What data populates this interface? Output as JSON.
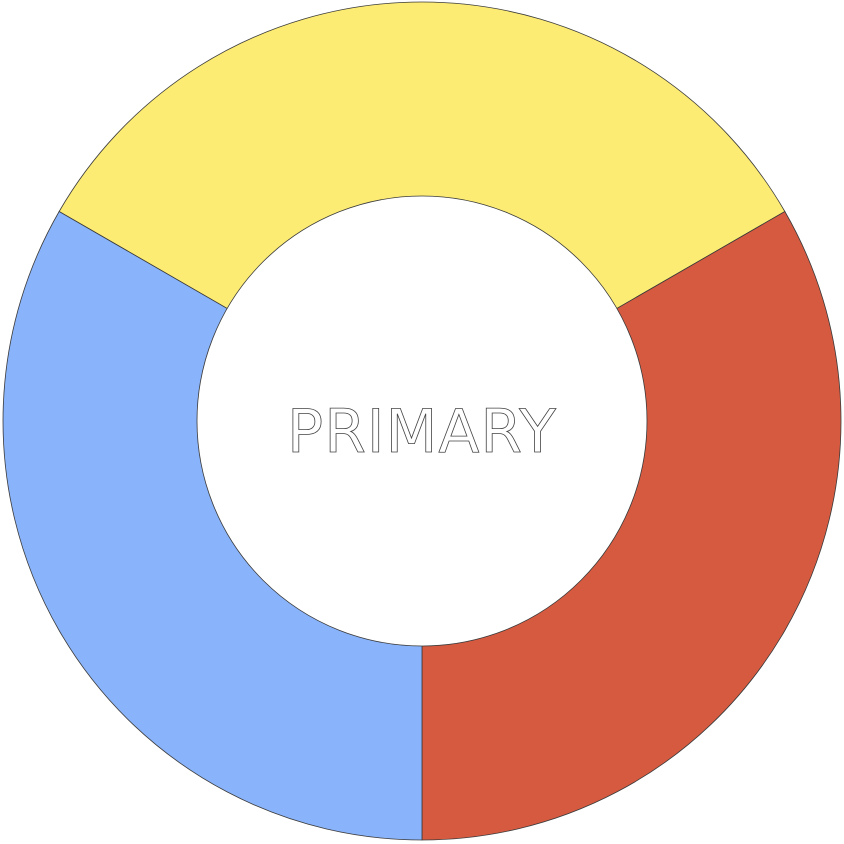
{
  "wheel": {
    "center_label": "PRIMARY",
    "segments": [
      {
        "name": "yellow",
        "color": "#FDEC73",
        "start_deg": -60,
        "end_deg": 60
      },
      {
        "name": "red",
        "color": "#D65A40",
        "start_deg": 60,
        "end_deg": 180
      },
      {
        "name": "blue",
        "color": "#89B3FA",
        "start_deg": 180,
        "end_deg": 300
      }
    ]
  }
}
